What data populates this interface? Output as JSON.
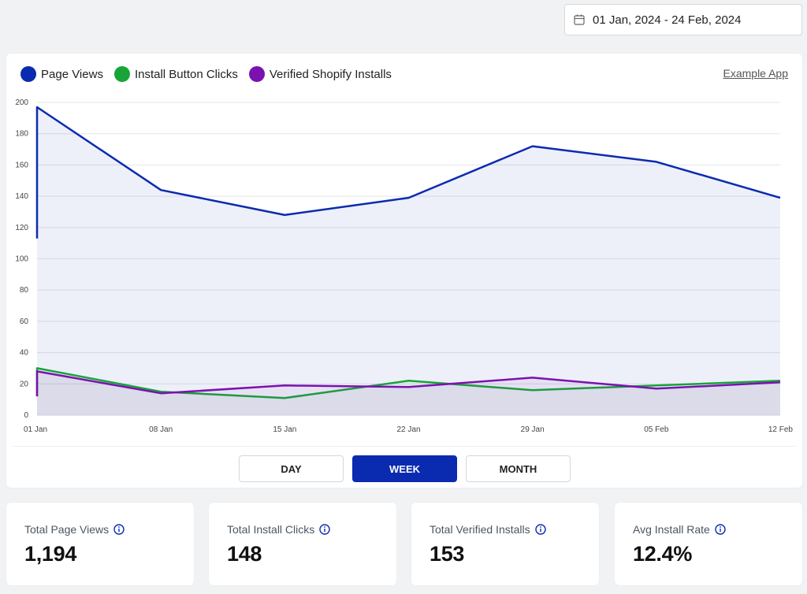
{
  "date_range": {
    "label": "01 Jan, 2024 - 24 Feb, 2024",
    "icon": "calendar-icon"
  },
  "chart_header": {
    "legend": [
      {
        "label": "Page Views",
        "color": "#0a2bb0"
      },
      {
        "label": "Install Button Clicks",
        "color": "#17a537"
      },
      {
        "label": "Verified Shopify Installs",
        "color": "#7b12b0"
      }
    ],
    "example_link": "Example App"
  },
  "chart_data": {
    "type": "area",
    "categories": [
      "01 Jan",
      "08 Jan",
      "15 Jan",
      "22 Jan",
      "29 Jan",
      "05 Feb",
      "12 Feb"
    ],
    "series": [
      {
        "name": "Page Views",
        "color": "#0a2bb0",
        "values": [
          197,
          144,
          128,
          139,
          172,
          162,
          139
        ],
        "start_value": 113
      },
      {
        "name": "Install Button Clicks",
        "color": "#17a537",
        "values": [
          30,
          15,
          11,
          22,
          16,
          19,
          22
        ],
        "start_value": 12
      },
      {
        "name": "Verified Shopify Installs",
        "color": "#7b12b0",
        "values": [
          28,
          14,
          19,
          18,
          24,
          17,
          21
        ],
        "start_value": 12
      }
    ],
    "yticks": [
      0,
      20,
      40,
      60,
      80,
      100,
      120,
      140,
      160,
      180,
      200
    ],
    "ylim": [
      0,
      200
    ],
    "grid": true
  },
  "granularity": {
    "options": [
      {
        "label": "DAY",
        "active": false
      },
      {
        "label": "WEEK",
        "active": true
      },
      {
        "label": "MONTH",
        "active": false
      }
    ]
  },
  "stats": [
    {
      "label": "Total Page Views",
      "value": "1,194"
    },
    {
      "label": "Total Install Clicks",
      "value": "148"
    },
    {
      "label": "Total Verified Installs",
      "value": "153"
    },
    {
      "label": "Avg Install Rate",
      "value": "12.4%"
    }
  ],
  "colors": {
    "accent": "#0a2bb0",
    "info_icon": "#0a2bb0"
  }
}
